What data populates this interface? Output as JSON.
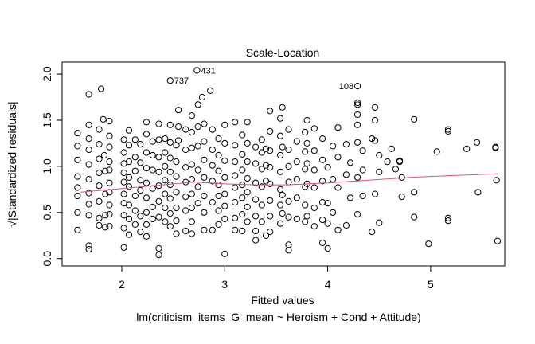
{
  "chart_data": {
    "type": "scatter",
    "title": "Scale-Location",
    "xlabel": "Fitted values",
    "ylabel": "√|Standardized residuals|",
    "subtitle": "lm(criticism_items_G_mean ~ Heroism + Cond + Attitude)",
    "xlim": [
      1.42,
      5.72
    ],
    "ylim": [
      -0.08,
      2.13
    ],
    "xticks": [
      2,
      3,
      4,
      5
    ],
    "yticks": [
      0.0,
      0.5,
      1.0,
      1.5,
      2.0
    ],
    "xtick_labels": [
      "2",
      "3",
      "4",
      "5"
    ],
    "ytick_labels": [
      "0.0",
      "0.5",
      "1.0",
      "1.5",
      "2.0"
    ],
    "smooth_color": "#DF536B",
    "smooth": [
      [
        1.6,
        0.72
      ],
      [
        2.0,
        0.76
      ],
      [
        2.4,
        0.8
      ],
      [
        2.7,
        0.83
      ],
      [
        3.0,
        0.81
      ],
      [
        3.3,
        0.8
      ],
      [
        3.6,
        0.8
      ],
      [
        4.0,
        0.82
      ],
      [
        4.4,
        0.85
      ],
      [
        4.8,
        0.88
      ],
      [
        5.2,
        0.9
      ],
      [
        5.65,
        0.92
      ]
    ],
    "labeled_points": [
      {
        "x": 2.47,
        "y": 1.93,
        "label": "737"
      },
      {
        "x": 2.73,
        "y": 2.04,
        "label": "431"
      },
      {
        "x": 4.29,
        "y": 1.87,
        "label": "108"
      }
    ],
    "points": [
      [
        1.57,
        1.36
      ],
      [
        1.57,
        1.22
      ],
      [
        1.57,
        1.07
      ],
      [
        1.57,
        0.89
      ],
      [
        1.57,
        0.77
      ],
      [
        1.57,
        0.68
      ],
      [
        1.57,
        0.5
      ],
      [
        1.57,
        0.31
      ],
      [
        1.68,
        1.78
      ],
      [
        1.68,
        1.45
      ],
      [
        1.68,
        1.3
      ],
      [
        1.68,
        1.18
      ],
      [
        1.68,
        1.02
      ],
      [
        1.68,
        0.86
      ],
      [
        1.68,
        0.71
      ],
      [
        1.68,
        0.59
      ],
      [
        1.68,
        0.47
      ],
      [
        1.68,
        0.14
      ],
      [
        1.68,
        0.1
      ],
      [
        1.78,
        1.4
      ],
      [
        1.78,
        1.24
      ],
      [
        1.78,
        1.08
      ],
      [
        1.78,
        0.93
      ],
      [
        1.78,
        0.79
      ],
      [
        1.78,
        0.62
      ],
      [
        1.78,
        0.44
      ],
      [
        1.78,
        0.36
      ],
      [
        1.8,
        1.84
      ],
      [
        1.82,
        1.51
      ],
      [
        1.83,
        1.12
      ],
      [
        1.84,
        0.95
      ],
      [
        1.84,
        0.7
      ],
      [
        1.84,
        0.47
      ],
      [
        1.84,
        0.34
      ],
      [
        1.88,
        1.49
      ],
      [
        1.88,
        1.33
      ],
      [
        1.88,
        1.21
      ],
      [
        1.88,
        1.05
      ],
      [
        1.88,
        0.96
      ],
      [
        1.88,
        0.82
      ],
      [
        1.88,
        0.72
      ],
      [
        1.88,
        0.58
      ],
      [
        1.88,
        0.48
      ],
      [
        1.88,
        0.35
      ],
      [
        2.02,
        1.29
      ],
      [
        2.02,
        1.15
      ],
      [
        2.02,
        1.03
      ],
      [
        2.02,
        0.93
      ],
      [
        2.02,
        0.83
      ],
      [
        2.02,
        0.7
      ],
      [
        2.02,
        0.6
      ],
      [
        2.02,
        0.47
      ],
      [
        2.02,
        0.33
      ],
      [
        2.02,
        0.12
      ],
      [
        2.07,
        1.39
      ],
      [
        2.07,
        1.23
      ],
      [
        2.07,
        1.05
      ],
      [
        2.07,
        0.88
      ],
      [
        2.07,
        0.78
      ],
      [
        2.07,
        0.58
      ],
      [
        2.07,
        0.43
      ],
      [
        2.07,
        0.26
      ],
      [
        2.13,
        1.29
      ],
      [
        2.13,
        1.1
      ],
      [
        2.13,
        0.95
      ],
      [
        2.13,
        0.68
      ],
      [
        2.13,
        0.52
      ],
      [
        2.13,
        0.37
      ],
      [
        2.18,
        1.24
      ],
      [
        2.18,
        1.04
      ],
      [
        2.18,
        0.85
      ],
      [
        2.18,
        0.74
      ],
      [
        2.18,
        0.46
      ],
      [
        2.18,
        0.29
      ],
      [
        2.24,
        1.48
      ],
      [
        2.24,
        1.35
      ],
      [
        2.24,
        1.15
      ],
      [
        2.24,
        0.98
      ],
      [
        2.24,
        0.82
      ],
      [
        2.24,
        0.66
      ],
      [
        2.24,
        0.5
      ],
      [
        2.24,
        0.37
      ],
      [
        2.24,
        0.24
      ],
      [
        2.3,
        1.27
      ],
      [
        2.3,
        1.12
      ],
      [
        2.3,
        0.96
      ],
      [
        2.3,
        0.76
      ],
      [
        2.3,
        0.56
      ],
      [
        2.3,
        0.43
      ],
      [
        2.36,
        1.46
      ],
      [
        2.36,
        1.29
      ],
      [
        2.36,
        1.1
      ],
      [
        2.36,
        0.94
      ],
      [
        2.36,
        0.79
      ],
      [
        2.36,
        0.62
      ],
      [
        2.36,
        0.45
      ],
      [
        2.36,
        0.11
      ],
      [
        2.36,
        0.04
      ],
      [
        2.42,
        1.3
      ],
      [
        2.42,
        1.15
      ],
      [
        2.42,
        1.0
      ],
      [
        2.42,
        0.85
      ],
      [
        2.42,
        0.7
      ],
      [
        2.42,
        0.55
      ],
      [
        2.42,
        0.4
      ],
      [
        2.47,
        1.45
      ],
      [
        2.47,
        1.26
      ],
      [
        2.47,
        1.09
      ],
      [
        2.47,
        0.94
      ],
      [
        2.47,
        0.8
      ],
      [
        2.47,
        0.65
      ],
      [
        2.47,
        0.49
      ],
      [
        2.47,
        0.35
      ],
      [
        2.53,
        1.23
      ],
      [
        2.53,
        1.05
      ],
      [
        2.53,
        0.89
      ],
      [
        2.53,
        0.72
      ],
      [
        2.53,
        0.55
      ],
      [
        2.53,
        0.41
      ],
      [
        2.53,
        0.27
      ],
      [
        2.55,
        1.61
      ],
      [
        2.55,
        1.43
      ],
      [
        2.55,
        1.28
      ],
      [
        2.62,
        1.4
      ],
      [
        2.62,
        1.18
      ],
      [
        2.62,
        0.99
      ],
      [
        2.62,
        0.83
      ],
      [
        2.62,
        0.67
      ],
      [
        2.62,
        0.52
      ],
      [
        2.62,
        0.3
      ],
      [
        2.68,
        1.55
      ],
      [
        2.68,
        1.37
      ],
      [
        2.68,
        1.2
      ],
      [
        2.68,
        1.02
      ],
      [
        2.68,
        0.86
      ],
      [
        2.68,
        0.7
      ],
      [
        2.68,
        0.55
      ],
      [
        2.68,
        0.4
      ],
      [
        2.68,
        0.27
      ],
      [
        2.74,
        1.67
      ],
      [
        2.74,
        1.43
      ],
      [
        2.74,
        1.22
      ],
      [
        2.74,
        0.96
      ],
      [
        2.74,
        0.78
      ],
      [
        2.74,
        0.6
      ],
      [
        2.78,
        1.75
      ],
      [
        2.8,
        1.46
      ],
      [
        2.8,
        1.27
      ],
      [
        2.8,
        1.07
      ],
      [
        2.8,
        0.88
      ],
      [
        2.8,
        0.68
      ],
      [
        2.8,
        0.5
      ],
      [
        2.8,
        0.31
      ],
      [
        2.86,
        1.82
      ],
      [
        2.88,
        1.4
      ],
      [
        2.88,
        1.18
      ],
      [
        2.88,
        1.01
      ],
      [
        2.88,
        0.84
      ],
      [
        2.88,
        0.61
      ],
      [
        2.88,
        0.31
      ],
      [
        2.94,
        1.3
      ],
      [
        2.94,
        1.12
      ],
      [
        2.94,
        0.95
      ],
      [
        2.94,
        0.8
      ],
      [
        2.94,
        0.68
      ],
      [
        2.94,
        0.52
      ],
      [
        2.94,
        0.37
      ],
      [
        3.0,
        1.45
      ],
      [
        3.0,
        1.25
      ],
      [
        3.0,
        1.06
      ],
      [
        3.0,
        0.88
      ],
      [
        3.0,
        0.7
      ],
      [
        3.0,
        0.57
      ],
      [
        3.0,
        0.43
      ],
      [
        3.0,
        0.05
      ],
      [
        3.1,
        1.48
      ],
      [
        3.1,
        1.23
      ],
      [
        3.1,
        1.05
      ],
      [
        3.1,
        0.9
      ],
      [
        3.1,
        0.77
      ],
      [
        3.1,
        0.61
      ],
      [
        3.1,
        0.44
      ],
      [
        3.1,
        0.31
      ],
      [
        3.17,
        1.34
      ],
      [
        3.17,
        1.13
      ],
      [
        3.17,
        0.96
      ],
      [
        3.17,
        0.8
      ],
      [
        3.17,
        0.66
      ],
      [
        3.17,
        0.48
      ],
      [
        3.17,
        0.3
      ],
      [
        3.22,
        1.48
      ],
      [
        3.22,
        1.25
      ],
      [
        3.22,
        1.05
      ],
      [
        3.22,
        0.87
      ],
      [
        3.22,
        0.72
      ],
      [
        3.22,
        0.56
      ],
      [
        3.22,
        0.4
      ],
      [
        3.3,
        1.21
      ],
      [
        3.3,
        1.03
      ],
      [
        3.3,
        0.82
      ],
      [
        3.3,
        0.64
      ],
      [
        3.3,
        0.46
      ],
      [
        3.3,
        0.3
      ],
      [
        3.3,
        0.2
      ],
      [
        3.36,
        1.29
      ],
      [
        3.36,
        1.15
      ],
      [
        3.36,
        0.97
      ],
      [
        3.36,
        0.78
      ],
      [
        3.36,
        0.58
      ],
      [
        3.36,
        0.4
      ],
      [
        3.4,
        1.19
      ],
      [
        3.4,
        1.01
      ],
      [
        3.4,
        0.84
      ],
      [
        3.4,
        0.25
      ],
      [
        3.44,
        1.6
      ],
      [
        3.44,
        1.38
      ],
      [
        3.44,
        1.17
      ],
      [
        3.44,
        0.99
      ],
      [
        3.44,
        0.81
      ],
      [
        3.44,
        0.63
      ],
      [
        3.44,
        0.46
      ],
      [
        3.44,
        0.29
      ],
      [
        3.54,
        1.52
      ],
      [
        3.54,
        1.33
      ],
      [
        3.54,
        1.12
      ],
      [
        3.54,
        0.94
      ],
      [
        3.54,
        0.75
      ],
      [
        3.54,
        0.58
      ],
      [
        3.54,
        0.38
      ],
      [
        3.56,
        1.64
      ],
      [
        3.56,
        1.21
      ],
      [
        3.56,
        0.69
      ],
      [
        3.56,
        0.49
      ],
      [
        3.62,
        1.4
      ],
      [
        3.62,
        1.18
      ],
      [
        3.62,
        1.0
      ],
      [
        3.62,
        0.83
      ],
      [
        3.62,
        0.62
      ],
      [
        3.62,
        0.45
      ],
      [
        3.62,
        0.15
      ],
      [
        3.62,
        0.09
      ],
      [
        3.7,
        1.27
      ],
      [
        3.7,
        1.05
      ],
      [
        3.7,
        0.86
      ],
      [
        3.7,
        0.66
      ],
      [
        3.7,
        0.43
      ],
      [
        3.78,
        1.37
      ],
      [
        3.78,
        1.16
      ],
      [
        3.78,
        0.97
      ],
      [
        3.78,
        0.78
      ],
      [
        3.78,
        0.58
      ],
      [
        3.78,
        0.4
      ],
      [
        3.8,
        1.5
      ],
      [
        3.8,
        1.25
      ],
      [
        3.8,
        1.03
      ],
      [
        3.8,
        0.81
      ],
      [
        3.8,
        0.46
      ],
      [
        3.87,
        1.41
      ],
      [
        3.87,
        1.17
      ],
      [
        3.87,
        0.96
      ],
      [
        3.87,
        0.77
      ],
      [
        3.87,
        0.55
      ],
      [
        3.87,
        0.35
      ],
      [
        3.95,
        1.3
      ],
      [
        3.95,
        1.07
      ],
      [
        3.95,
        0.84
      ],
      [
        3.95,
        0.61
      ],
      [
        3.95,
        0.42
      ],
      [
        3.95,
        0.17
      ],
      [
        4.0,
        0.99
      ],
      [
        4.0,
        0.6
      ],
      [
        4.0,
        0.38
      ],
      [
        4.0,
        0.11
      ],
      [
        4.05,
        1.22
      ],
      [
        4.05,
        0.86
      ],
      [
        4.05,
        0.5
      ],
      [
        4.1,
        1.42
      ],
      [
        4.1,
        1.1
      ],
      [
        4.1,
        0.77
      ],
      [
        4.1,
        0.31
      ],
      [
        4.18,
        1.24
      ],
      [
        4.18,
        0.91
      ],
      [
        4.18,
        0.36
      ],
      [
        4.22,
        1.04
      ],
      [
        4.22,
        0.66
      ],
      [
        4.29,
        1.69
      ],
      [
        4.29,
        1.67
      ],
      [
        4.29,
        1.56
      ],
      [
        4.29,
        1.45
      ],
      [
        4.29,
        1.26
      ],
      [
        4.29,
        0.88
      ],
      [
        4.29,
        0.48
      ],
      [
        4.34,
        1.17
      ],
      [
        4.34,
        0.96
      ],
      [
        4.34,
        0.68
      ],
      [
        4.43,
        1.3
      ],
      [
        4.43,
        0.29
      ],
      [
        4.46,
        1.64
      ],
      [
        4.46,
        1.5
      ],
      [
        4.46,
        1.28
      ],
      [
        4.46,
        0.7
      ],
      [
        4.5,
        1.12
      ],
      [
        4.5,
        0.94
      ],
      [
        4.5,
        0.39
      ],
      [
        4.58,
        1.05
      ],
      [
        4.62,
        1.19
      ],
      [
        4.66,
        0.97
      ],
      [
        4.7,
        1.05
      ],
      [
        4.7,
        1.06
      ],
      [
        4.72,
        0.88
      ],
      [
        4.72,
        0.67
      ],
      [
        4.84,
        1.51
      ],
      [
        4.84,
        0.72
      ],
      [
        4.84,
        0.45
      ],
      [
        4.98,
        0.16
      ],
      [
        5.06,
        1.16
      ],
      [
        5.17,
        1.4
      ],
      [
        5.17,
        1.38
      ],
      [
        5.17,
        0.44
      ],
      [
        5.17,
        0.41
      ],
      [
        5.35,
        1.19
      ],
      [
        5.45,
        1.26
      ],
      [
        5.46,
        0.72
      ],
      [
        5.63,
        1.21
      ],
      [
        5.63,
        1.2
      ],
      [
        5.64,
        0.85
      ],
      [
        5.65,
        0.19
      ]
    ]
  }
}
